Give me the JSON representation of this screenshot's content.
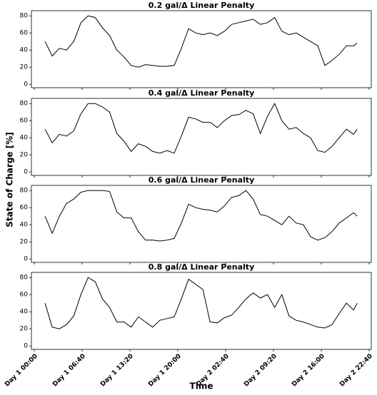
{
  "ylabel": "State of Charge [%]",
  "chart_data": [
    {
      "type": "line",
      "title": "0.2 gal/Δ Linear Penalty",
      "x": [
        90,
        150,
        210,
        270,
        330,
        390,
        450,
        510,
        570,
        630,
        690,
        750,
        810,
        870,
        930,
        990,
        1050,
        1110,
        1170,
        1230,
        1290,
        1350,
        1410,
        1470,
        1530,
        1590,
        1650,
        1710,
        1770,
        1830,
        1890,
        1950,
        2010,
        2070,
        2130,
        2190,
        2250,
        2310,
        2370,
        2430,
        2490,
        2550,
        2610,
        2670,
        2700
      ],
      "series": [
        {
          "color": "#000000",
          "values": [
            50,
            33,
            42,
            40,
            50,
            72,
            80,
            78,
            66,
            57,
            40,
            32,
            22,
            20,
            23,
            22,
            21,
            21,
            22,
            42,
            65,
            60,
            58,
            60,
            57,
            62,
            70,
            72,
            74,
            76,
            70,
            72,
            78,
            62,
            58,
            60,
            55,
            50,
            45,
            22,
            28,
            35,
            45,
            45,
            48
          ]
        }
      ],
      "xlim": [
        -24,
        2818
      ],
      "ylim": [
        -4,
        86
      ],
      "yticks": [
        0,
        20,
        40,
        60,
        80
      ]
    },
    {
      "type": "line",
      "title": "0.4 gal/Δ Linear Penalty",
      "x": [
        90,
        150,
        210,
        270,
        330,
        390,
        450,
        510,
        570,
        630,
        690,
        750,
        810,
        870,
        930,
        990,
        1050,
        1110,
        1170,
        1230,
        1290,
        1350,
        1410,
        1470,
        1530,
        1590,
        1650,
        1710,
        1770,
        1830,
        1890,
        1950,
        2010,
        2070,
        2130,
        2190,
        2250,
        2310,
        2370,
        2430,
        2490,
        2550,
        2610,
        2670,
        2700
      ],
      "series": [
        {
          "color": "#000000",
          "values": [
            50,
            34,
            44,
            42,
            48,
            68,
            80,
            80,
            76,
            70,
            45,
            36,
            24,
            33,
            30,
            24,
            22,
            25,
            22,
            42,
            64,
            62,
            58,
            58,
            52,
            60,
            66,
            67,
            72,
            68,
            45,
            65,
            80,
            60,
            50,
            52,
            45,
            40,
            25,
            23,
            30,
            40,
            50,
            44,
            50
          ]
        }
      ],
      "xlim": [
        -24,
        2818
      ],
      "ylim": [
        -4,
        86
      ],
      "yticks": [
        0,
        20,
        40,
        60,
        80
      ]
    },
    {
      "type": "line",
      "title": "0.6 gal/Δ Linear Penalty",
      "x": [
        90,
        150,
        210,
        270,
        330,
        390,
        450,
        510,
        570,
        630,
        690,
        750,
        810,
        870,
        930,
        990,
        1050,
        1110,
        1170,
        1230,
        1290,
        1350,
        1410,
        1470,
        1530,
        1590,
        1650,
        1710,
        1770,
        1830,
        1890,
        1950,
        2010,
        2070,
        2130,
        2190,
        2250,
        2310,
        2370,
        2430,
        2490,
        2550,
        2610,
        2670,
        2700
      ],
      "series": [
        {
          "color": "#000000",
          "values": [
            50,
            30,
            50,
            65,
            70,
            78,
            80,
            80,
            80,
            79,
            55,
            48,
            48,
            32,
            22,
            22,
            21,
            22,
            24,
            42,
            64,
            60,
            58,
            57,
            55,
            62,
            72,
            74,
            80,
            70,
            52,
            50,
            45,
            40,
            50,
            42,
            40,
            26,
            22,
            25,
            32,
            42,
            48,
            54,
            50
          ]
        }
      ],
      "xlim": [
        -24,
        2818
      ],
      "ylim": [
        -4,
        86
      ],
      "yticks": [
        0,
        20,
        40,
        60,
        80
      ]
    },
    {
      "type": "line",
      "title": "0.8 gal/Δ Linear Penalty",
      "xlabel": "Time",
      "x": [
        90,
        150,
        210,
        270,
        330,
        390,
        450,
        510,
        570,
        630,
        690,
        750,
        810,
        870,
        930,
        990,
        1050,
        1110,
        1170,
        1230,
        1290,
        1350,
        1410,
        1470,
        1530,
        1590,
        1650,
        1710,
        1770,
        1830,
        1890,
        1950,
        2010,
        2070,
        2130,
        2190,
        2250,
        2310,
        2370,
        2430,
        2490,
        2550,
        2610,
        2670,
        2700
      ],
      "series": [
        {
          "color": "#000000",
          "values": [
            50,
            22,
            20,
            25,
            35,
            60,
            80,
            75,
            55,
            45,
            28,
            28,
            22,
            34,
            28,
            22,
            30,
            32,
            34,
            55,
            78,
            72,
            66,
            28,
            27,
            33,
            36,
            45,
            55,
            62,
            56,
            60,
            45,
            60,
            35,
            30,
            28,
            25,
            22,
            21,
            25,
            38,
            50,
            42,
            50
          ]
        }
      ],
      "xlim": [
        -24,
        2818
      ],
      "ylim": [
        -4,
        86
      ],
      "yticks": [
        0,
        20,
        40,
        60,
        80
      ],
      "xticks": [
        {
          "value": 0,
          "label": "Day 1 00:00"
        },
        {
          "value": 400,
          "label": "Day 1 06:40"
        },
        {
          "value": 800,
          "label": "Day 1 13:20"
        },
        {
          "value": 1200,
          "label": "Day 1 20:00"
        },
        {
          "value": 1600,
          "label": "Day 2 02:40"
        },
        {
          "value": 2000,
          "label": "Day 2 09:20"
        },
        {
          "value": 2400,
          "label": "Day 2 16:00"
        },
        {
          "value": 2800,
          "label": "Day 2 22:40"
        }
      ]
    }
  ]
}
